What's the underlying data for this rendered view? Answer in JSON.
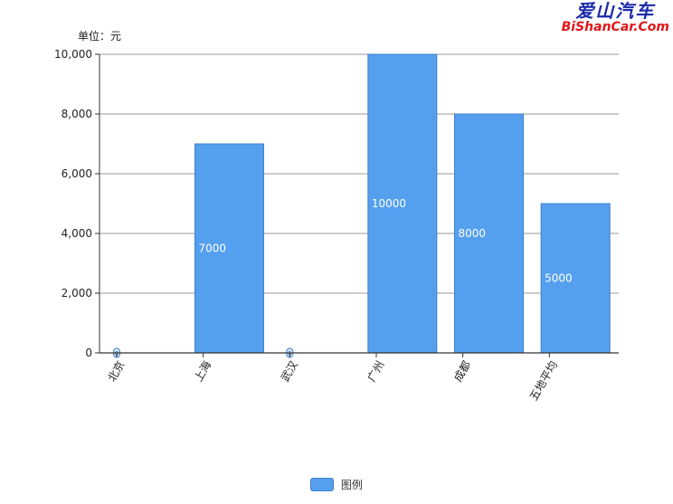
{
  "unit_label": "单位：元",
  "watermark": {
    "cn": "爱山汽车",
    "en": "BiShanCar.Com"
  },
  "legend": {
    "label": "图例"
  },
  "colors": {
    "bar": "#549fee",
    "bar_stroke": "#3f80cc",
    "grid": "#999999",
    "axis": "#333333",
    "label_text": "#ffffff"
  },
  "chart_data": {
    "type": "bar",
    "categories": [
      "北京",
      "上海",
      "武汉",
      "广州",
      "成都",
      "五地平均"
    ],
    "series": [
      {
        "name": "图例",
        "values": [
          0,
          7000,
          0,
          10000,
          8000,
          5000
        ],
        "data_labels": [
          "0",
          "7000",
          "0",
          "10000",
          "8000",
          "5000"
        ]
      }
    ],
    "ylim": [
      0,
      10000
    ],
    "yticks": [
      0,
      2000,
      4000,
      6000,
      8000,
      10000
    ],
    "ytick_labels": [
      "0",
      "2,000",
      "4,000",
      "6,000",
      "8,000",
      "10,000"
    ],
    "grid": true,
    "legend_position": "bottom-center",
    "xlabel": "",
    "ylabel": ""
  }
}
